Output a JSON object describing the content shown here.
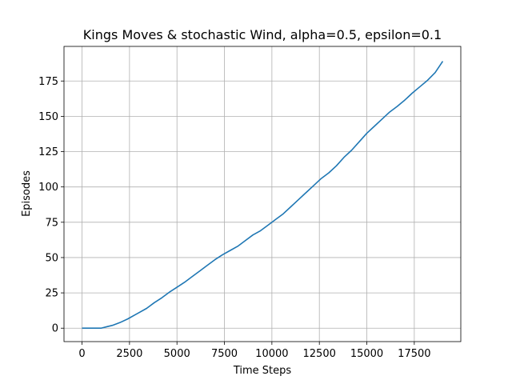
{
  "chart_data": {
    "type": "line",
    "title": "Kings Moves & stochastic Wind, alpha=0.5, epsilon=0.1",
    "xlabel": "Time Steps",
    "ylabel": "Episodes",
    "xlim": [
      -950,
      19950
    ],
    "ylim": [
      -9.5,
      199.5
    ],
    "xticks": [
      0,
      2500,
      5000,
      7500,
      10000,
      12500,
      15000,
      17500
    ],
    "yticks": [
      0,
      25,
      50,
      75,
      100,
      125,
      150,
      175
    ],
    "grid": true,
    "series": [
      {
        "color": "#1f77b4",
        "x": [
          0,
          500,
          1000,
          1300,
          1600,
          2000,
          2400,
          2800,
          3000,
          3400,
          3800,
          4200,
          4600,
          5000,
          5400,
          5800,
          6200,
          6600,
          7000,
          7400,
          7800,
          8200,
          8600,
          9000,
          9400,
          9800,
          10200,
          10600,
          11000,
          11400,
          11800,
          12200,
          12600,
          13000,
          13400,
          13800,
          14200,
          14600,
          15000,
          15400,
          15800,
          16200,
          16600,
          17000,
          17400,
          17800,
          18200,
          18600,
          19000
        ],
        "y": [
          0,
          0,
          0,
          1,
          2,
          4,
          6.5,
          9.5,
          11,
          14,
          18,
          21.5,
          25.5,
          29,
          32.5,
          36.5,
          40.5,
          44.5,
          48.5,
          52,
          55,
          58,
          62,
          66,
          69,
          73,
          77,
          81,
          86,
          91,
          96,
          101,
          106,
          110,
          115,
          121,
          126,
          132,
          138,
          143,
          148,
          153,
          157,
          161.5,
          166.5,
          171,
          175.5,
          181,
          189
        ]
      }
    ]
  }
}
